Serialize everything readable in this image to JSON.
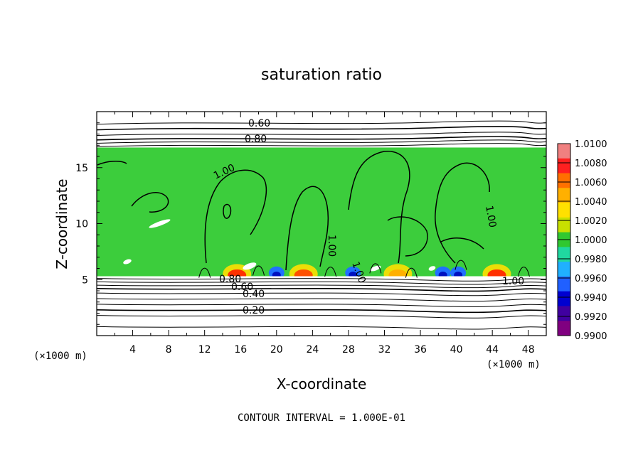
{
  "chart_data": {
    "type": "heatmap",
    "title": "saturation ratio",
    "xlabel": "X-coordinate",
    "ylabel": "Z-coordinate",
    "x_unit": "(×1000 m)",
    "x_unit_right": "(×1000 m)",
    "xlim": [
      0,
      50
    ],
    "ylim": [
      0,
      20
    ],
    "x_ticks": [
      "4",
      "8",
      "12",
      "16",
      "20",
      "24",
      "28",
      "32",
      "36",
      "40",
      "44",
      "48"
    ],
    "y_ticks": [
      "5",
      "10",
      "15"
    ],
    "colorbar": {
      "labels": [
        "1.0100",
        "1.0080",
        "1.0060",
        "1.0040",
        "1.0020",
        "1.0000",
        "0.9980",
        "0.9960",
        "0.9940",
        "0.9920",
        "0.9900"
      ],
      "colors": [
        "#f08080",
        "#ff2020",
        "#ff7000",
        "#ffb000",
        "#ffe000",
        "#c8e000",
        "#30c830",
        "#20d8a0",
        "#20b0ff",
        "#2060ff",
        "#0000d0",
        "#4000a0",
        "#800080"
      ]
    },
    "contour_labels": [
      "0.60",
      "0.80",
      "1.00",
      "1.00",
      "1.00",
      "1.00",
      "1.00",
      "0.80",
      "0.60",
      "0.40",
      "0.20",
      "0.80"
    ],
    "footer": "CONTOUR INTERVAL = 1.000E-01"
  }
}
